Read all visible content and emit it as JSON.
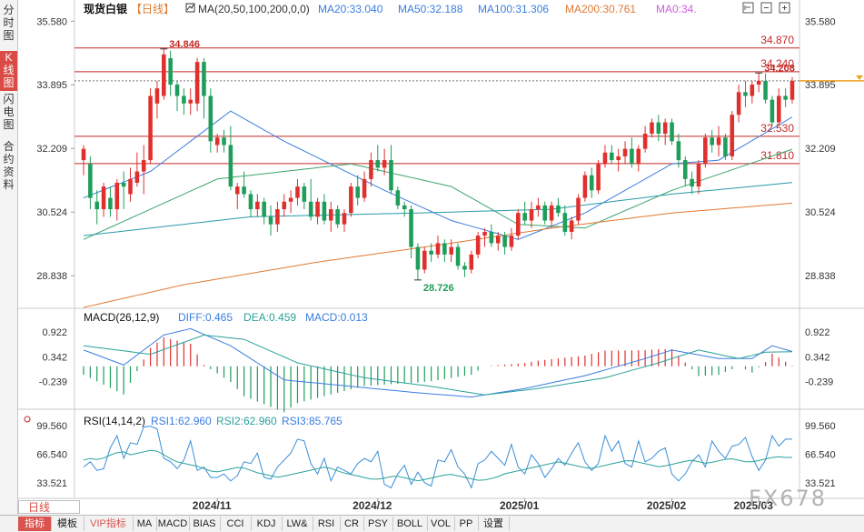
{
  "side_tabs": [
    {
      "label": "分时图",
      "active": false
    },
    {
      "label": "K线图",
      "active": true
    },
    {
      "label": "闪电图",
      "active": false
    },
    {
      "label": "合约资料",
      "active": false
    }
  ],
  "bottom_tabs": [
    {
      "label": "指标",
      "active": true
    },
    {
      "label": "模板"
    },
    {
      "label": "VIP指标",
      "vip": true
    },
    {
      "label": "MA"
    },
    {
      "label": "MACD"
    },
    {
      "label": "BIAS"
    },
    {
      "label": "CCI"
    },
    {
      "label": "KDJ"
    },
    {
      "label": "LW&"
    },
    {
      "label": "RSI"
    },
    {
      "label": "CR"
    },
    {
      "label": "PSY"
    },
    {
      "label": "BOLL"
    },
    {
      "label": "VOL"
    },
    {
      "label": "PP"
    },
    {
      "label": "设置"
    }
  ],
  "period_label": "日线",
  "watermark": "FX678",
  "main_panel": {
    "name": "现货白银",
    "period_tag": "【日线】",
    "indicator": "MA(20,50,100,200,0,0)",
    "ma_labels": [
      {
        "text": "MA20:33.040",
        "color": "#3a7de0"
      },
      {
        "text": "MA50:32.188",
        "color": "#3a7de0"
      },
      {
        "text": "MA100:31.306",
        "color": "#3a7de0"
      },
      {
        "text": "MA200:30.761",
        "color": "#e07a33"
      },
      {
        "text": "MA0:34.",
        "color": "#d05ee0"
      }
    ],
    "y_ticks": [
      "35.580",
      "33.895",
      "32.209",
      "30.524",
      "28.838"
    ],
    "y_ticks_right": [
      "35.580",
      "33.895",
      "32.209",
      "30.524",
      "28.838"
    ],
    "hlines": [
      {
        "label": "34.870",
        "value": 34.87
      },
      {
        "label": "34.240",
        "value": 34.24
      },
      {
        "label": "32.530",
        "value": 32.53
      },
      {
        "label": "31.810",
        "value": 31.81
      }
    ],
    "high_annotation": "34.846",
    "recent_high_annotation": "34.208",
    "low_annotation": "28.726"
  },
  "macd_panel": {
    "title": "MACD(26,12,9)",
    "diff_label": "DIFF:0.465",
    "dea_label": "DEA:0.459",
    "macd_label": "MACD:0.013",
    "y_ticks": [
      "0.922",
      "0.342",
      "-0.239"
    ],
    "y_ticks_right": [
      "0.922",
      "0.342",
      "-0.239"
    ]
  },
  "rsi_panel": {
    "title": "RSI(14,14,2)",
    "rsi1_label": "RSI1:62.960",
    "rsi2_label": "RSI2:62.960",
    "rsi3_label": "RSI3:85.765",
    "y_ticks": [
      "99.560",
      "66.540",
      "33.521"
    ],
    "y_ticks_right": [
      "99.560",
      "66.540",
      "33.521"
    ]
  },
  "x_labels": [
    "2024/11",
    "2024/12",
    "2025/01",
    "2025/02",
    "2025/03"
  ],
  "chart_data": {
    "type": "candlestick",
    "title": "现货白银【日线】",
    "ylim": [
      28.0,
      35.9
    ],
    "candles": [
      {
        "o": 31.9,
        "h": 32.3,
        "l": 31.5,
        "c": 32.2
      },
      {
        "o": 31.8,
        "h": 32.0,
        "l": 30.6,
        "c": 30.9
      },
      {
        "o": 30.8,
        "h": 31.1,
        "l": 30.2,
        "c": 30.6
      },
      {
        "o": 30.6,
        "h": 31.3,
        "l": 30.4,
        "c": 31.2
      },
      {
        "o": 30.9,
        "h": 31.2,
        "l": 30.4,
        "c": 30.6
      },
      {
        "o": 30.6,
        "h": 31.4,
        "l": 30.3,
        "c": 31.3
      },
      {
        "o": 31.3,
        "h": 31.6,
        "l": 30.6,
        "c": 31.2
      },
      {
        "o": 31.0,
        "h": 31.7,
        "l": 30.8,
        "c": 31.4
      },
      {
        "o": 31.3,
        "h": 32.1,
        "l": 31.2,
        "c": 31.6
      },
      {
        "o": 31.6,
        "h": 32.3,
        "l": 31.0,
        "c": 31.9
      },
      {
        "o": 31.9,
        "h": 33.8,
        "l": 31.8,
        "c": 33.6
      },
      {
        "o": 33.4,
        "h": 34.0,
        "l": 33.0,
        "c": 33.8
      },
      {
        "o": 33.6,
        "h": 34.846,
        "l": 33.5,
        "c": 34.7
      },
      {
        "o": 34.6,
        "h": 34.8,
        "l": 33.6,
        "c": 33.9
      },
      {
        "o": 33.9,
        "h": 34.0,
        "l": 33.2,
        "c": 33.6
      },
      {
        "o": 33.6,
        "h": 33.8,
        "l": 33.1,
        "c": 33.4
      },
      {
        "o": 33.4,
        "h": 33.8,
        "l": 33.1,
        "c": 33.5
      },
      {
        "o": 33.4,
        "h": 34.6,
        "l": 33.2,
        "c": 34.5
      },
      {
        "o": 34.5,
        "h": 34.6,
        "l": 33.0,
        "c": 33.6
      },
      {
        "o": 33.6,
        "h": 33.8,
        "l": 32.1,
        "c": 32.4
      },
      {
        "o": 32.3,
        "h": 32.6,
        "l": 32.1,
        "c": 32.5
      },
      {
        "o": 32.5,
        "h": 32.7,
        "l": 32.1,
        "c": 32.3
      },
      {
        "o": 32.3,
        "h": 32.8,
        "l": 31.1,
        "c": 31.2
      },
      {
        "o": 31.0,
        "h": 31.3,
        "l": 30.6,
        "c": 31.2
      },
      {
        "o": 31.2,
        "h": 31.6,
        "l": 30.9,
        "c": 31.0
      },
      {
        "o": 31.0,
        "h": 31.1,
        "l": 30.4,
        "c": 30.6
      },
      {
        "o": 30.6,
        "h": 31.0,
        "l": 30.4,
        "c": 30.8
      },
      {
        "o": 30.8,
        "h": 30.9,
        "l": 30.2,
        "c": 30.4
      },
      {
        "o": 30.4,
        "h": 30.7,
        "l": 29.9,
        "c": 30.2
      },
      {
        "o": 30.2,
        "h": 30.8,
        "l": 30.0,
        "c": 30.6
      },
      {
        "o": 30.6,
        "h": 31.0,
        "l": 30.4,
        "c": 30.8
      },
      {
        "o": 30.8,
        "h": 31.1,
        "l": 30.5,
        "c": 30.9
      },
      {
        "o": 30.9,
        "h": 31.4,
        "l": 30.7,
        "c": 31.2
      },
      {
        "o": 31.2,
        "h": 31.3,
        "l": 30.6,
        "c": 30.8
      },
      {
        "o": 30.8,
        "h": 31.4,
        "l": 30.3,
        "c": 30.4
      },
      {
        "o": 30.4,
        "h": 30.9,
        "l": 30.2,
        "c": 30.8
      },
      {
        "o": 30.8,
        "h": 31.0,
        "l": 30.2,
        "c": 30.3
      },
      {
        "o": 30.3,
        "h": 30.8,
        "l": 30.0,
        "c": 30.6
      },
      {
        "o": 30.6,
        "h": 30.7,
        "l": 30.1,
        "c": 30.2
      },
      {
        "o": 30.2,
        "h": 30.6,
        "l": 30.0,
        "c": 30.5
      },
      {
        "o": 30.5,
        "h": 31.3,
        "l": 30.4,
        "c": 31.2
      },
      {
        "o": 31.2,
        "h": 31.5,
        "l": 30.7,
        "c": 30.9
      },
      {
        "o": 30.9,
        "h": 31.6,
        "l": 30.8,
        "c": 31.4
      },
      {
        "o": 31.4,
        "h": 32.1,
        "l": 31.2,
        "c": 31.9
      },
      {
        "o": 31.9,
        "h": 32.3,
        "l": 31.6,
        "c": 31.7
      },
      {
        "o": 31.7,
        "h": 32.2,
        "l": 31.5,
        "c": 31.9
      },
      {
        "o": 31.9,
        "h": 32.3,
        "l": 31.0,
        "c": 31.1
      },
      {
        "o": 31.1,
        "h": 31.2,
        "l": 30.6,
        "c": 30.7
      },
      {
        "o": 30.7,
        "h": 30.8,
        "l": 30.4,
        "c": 30.6
      },
      {
        "o": 30.6,
        "h": 30.7,
        "l": 29.3,
        "c": 29.6
      },
      {
        "o": 29.6,
        "h": 29.7,
        "l": 28.726,
        "c": 29.0
      },
      {
        "o": 29.0,
        "h": 29.6,
        "l": 28.9,
        "c": 29.5
      },
      {
        "o": 29.5,
        "h": 29.7,
        "l": 29.2,
        "c": 29.4
      },
      {
        "o": 29.4,
        "h": 29.9,
        "l": 29.3,
        "c": 29.7
      },
      {
        "o": 29.7,
        "h": 29.8,
        "l": 29.2,
        "c": 29.4
      },
      {
        "o": 29.4,
        "h": 29.8,
        "l": 29.2,
        "c": 29.6
      },
      {
        "o": 29.6,
        "h": 29.7,
        "l": 29.0,
        "c": 29.1
      },
      {
        "o": 29.1,
        "h": 29.2,
        "l": 28.8,
        "c": 29.0
      },
      {
        "o": 29.0,
        "h": 29.5,
        "l": 28.9,
        "c": 29.4
      },
      {
        "o": 29.4,
        "h": 30.0,
        "l": 29.3,
        "c": 29.9
      },
      {
        "o": 29.9,
        "h": 30.1,
        "l": 29.6,
        "c": 30.0
      },
      {
        "o": 30.0,
        "h": 30.2,
        "l": 29.6,
        "c": 29.7
      },
      {
        "o": 29.7,
        "h": 30.0,
        "l": 29.5,
        "c": 29.9
      },
      {
        "o": 29.9,
        "h": 30.0,
        "l": 29.4,
        "c": 29.6
      },
      {
        "o": 29.6,
        "h": 30.1,
        "l": 29.5,
        "c": 29.9
      },
      {
        "o": 29.9,
        "h": 30.6,
        "l": 29.8,
        "c": 30.5
      },
      {
        "o": 30.5,
        "h": 30.8,
        "l": 30.2,
        "c": 30.3
      },
      {
        "o": 30.3,
        "h": 30.8,
        "l": 30.1,
        "c": 30.6
      },
      {
        "o": 30.6,
        "h": 30.9,
        "l": 30.4,
        "c": 30.7
      },
      {
        "o": 30.7,
        "h": 30.8,
        "l": 30.2,
        "c": 30.3
      },
      {
        "o": 30.3,
        "h": 30.8,
        "l": 30.1,
        "c": 30.7
      },
      {
        "o": 30.7,
        "h": 30.9,
        "l": 30.4,
        "c": 30.5
      },
      {
        "o": 30.5,
        "h": 30.7,
        "l": 29.9,
        "c": 30.0
      },
      {
        "o": 30.0,
        "h": 30.4,
        "l": 29.8,
        "c": 30.3
      },
      {
        "o": 30.3,
        "h": 31.0,
        "l": 30.2,
        "c": 30.9
      },
      {
        "o": 30.9,
        "h": 31.6,
        "l": 30.8,
        "c": 31.5
      },
      {
        "o": 31.5,
        "h": 31.7,
        "l": 30.9,
        "c": 31.1
      },
      {
        "o": 31.1,
        "h": 31.9,
        "l": 31.0,
        "c": 31.8
      },
      {
        "o": 31.8,
        "h": 32.3,
        "l": 31.7,
        "c": 32.1
      },
      {
        "o": 32.1,
        "h": 32.3,
        "l": 31.8,
        "c": 31.9
      },
      {
        "o": 31.9,
        "h": 32.2,
        "l": 31.6,
        "c": 32.0
      },
      {
        "o": 32.0,
        "h": 32.4,
        "l": 31.8,
        "c": 32.2
      },
      {
        "o": 32.2,
        "h": 32.5,
        "l": 31.7,
        "c": 31.8
      },
      {
        "o": 31.8,
        "h": 32.3,
        "l": 31.6,
        "c": 32.2
      },
      {
        "o": 32.2,
        "h": 32.8,
        "l": 32.1,
        "c": 32.6
      },
      {
        "o": 32.6,
        "h": 33.0,
        "l": 32.5,
        "c": 32.9
      },
      {
        "o": 32.9,
        "h": 33.1,
        "l": 32.4,
        "c": 32.6
      },
      {
        "o": 32.6,
        "h": 33.0,
        "l": 32.3,
        "c": 32.9
      },
      {
        "o": 32.9,
        "h": 33.0,
        "l": 32.3,
        "c": 32.4
      },
      {
        "o": 32.4,
        "h": 32.6,
        "l": 31.7,
        "c": 31.9
      },
      {
        "o": 31.9,
        "h": 32.0,
        "l": 31.2,
        "c": 31.4
      },
      {
        "o": 31.4,
        "h": 31.6,
        "l": 31.0,
        "c": 31.2
      },
      {
        "o": 31.2,
        "h": 31.9,
        "l": 31.0,
        "c": 31.8
      },
      {
        "o": 31.8,
        "h": 32.6,
        "l": 31.7,
        "c": 32.5
      },
      {
        "o": 32.5,
        "h": 32.7,
        "l": 32.1,
        "c": 32.3
      },
      {
        "o": 32.3,
        "h": 32.8,
        "l": 32.0,
        "c": 32.5
      },
      {
        "o": 32.5,
        "h": 32.6,
        "l": 31.9,
        "c": 32.0
      },
      {
        "o": 32.0,
        "h": 33.2,
        "l": 31.9,
        "c": 33.1
      },
      {
        "o": 33.1,
        "h": 33.9,
        "l": 32.9,
        "c": 33.7
      },
      {
        "o": 33.7,
        "h": 34.0,
        "l": 33.3,
        "c": 33.6
      },
      {
        "o": 33.6,
        "h": 34.0,
        "l": 33.4,
        "c": 33.9
      },
      {
        "o": 33.9,
        "h": 34.208,
        "l": 33.7,
        "c": 34.0
      },
      {
        "o": 34.0,
        "h": 34.2,
        "l": 33.4,
        "c": 33.5
      },
      {
        "o": 33.5,
        "h": 33.6,
        "l": 32.8,
        "c": 32.9
      },
      {
        "o": 32.9,
        "h": 33.8,
        "l": 32.8,
        "c": 33.6
      },
      {
        "o": 33.6,
        "h": 33.8,
        "l": 33.3,
        "c": 33.5
      },
      {
        "o": 33.5,
        "h": 34.1,
        "l": 33.4,
        "c": 34.0
      }
    ],
    "ma_series": [
      {
        "name": "MA20",
        "color": "#3a7de0",
        "anchors": [
          [
            0,
            30.9
          ],
          [
            10,
            31.6
          ],
          [
            22,
            33.2
          ],
          [
            30,
            32.4
          ],
          [
            45,
            31.1
          ],
          [
            55,
            30.3
          ],
          [
            65,
            29.8
          ],
          [
            75,
            30.5
          ],
          [
            88,
            31.8
          ],
          [
            95,
            31.9
          ],
          [
            106,
            33.04
          ]
        ]
      },
      {
        "name": "MA50",
        "color": "#3aa56b",
        "anchors": [
          [
            0,
            29.8
          ],
          [
            20,
            31.4
          ],
          [
            40,
            31.8
          ],
          [
            55,
            31.2
          ],
          [
            65,
            30.2
          ],
          [
            75,
            30.1
          ],
          [
            88,
            31.1
          ],
          [
            106,
            32.188
          ]
        ]
      },
      {
        "name": "MA100",
        "color": "#2a9aa8",
        "anchors": [
          [
            0,
            29.9
          ],
          [
            25,
            30.4
          ],
          [
            50,
            30.5
          ],
          [
            70,
            30.6
          ],
          [
            88,
            31.0
          ],
          [
            106,
            31.306
          ]
        ]
      },
      {
        "name": "MA200",
        "color": "#e07a33",
        "anchors": [
          [
            0,
            28.0
          ],
          [
            15,
            28.6
          ],
          [
            35,
            29.2
          ],
          [
            55,
            29.7
          ],
          [
            70,
            30.1
          ],
          [
            88,
            30.5
          ],
          [
            106,
            30.761
          ]
        ]
      }
    ],
    "macd": {
      "ylim": [
        -0.8,
        1.2
      ],
      "diff_anchors": [
        [
          0,
          0.5
        ],
        [
          6,
          0.15
        ],
        [
          12,
          0.85
        ],
        [
          16,
          1.0
        ],
        [
          22,
          0.6
        ],
        [
          30,
          -0.2
        ],
        [
          40,
          -0.35
        ],
        [
          50,
          -0.5
        ],
        [
          58,
          -0.6
        ],
        [
          66,
          -0.4
        ],
        [
          75,
          -0.1
        ],
        [
          84,
          0.3
        ],
        [
          88,
          0.5
        ],
        [
          95,
          0.3
        ],
        [
          100,
          0.3
        ],
        [
          103,
          0.6
        ],
        [
          106,
          0.465
        ]
      ],
      "dea_anchors": [
        [
          0,
          0.6
        ],
        [
          10,
          0.4
        ],
        [
          18,
          0.85
        ],
        [
          24,
          0.75
        ],
        [
          32,
          0.2
        ],
        [
          42,
          -0.15
        ],
        [
          52,
          -0.35
        ],
        [
          60,
          -0.55
        ],
        [
          68,
          -0.4
        ],
        [
          78,
          -0.15
        ],
        [
          86,
          0.2
        ],
        [
          92,
          0.5
        ],
        [
          98,
          0.3
        ],
        [
          102,
          0.45
        ],
        [
          106,
          0.459
        ]
      ]
    },
    "rsi": {
      "ylim": [
        18,
        108
      ],
      "rsi_fast": [
        52,
        58,
        48,
        50,
        74,
        88,
        62,
        80,
        78,
        98,
        99,
        96,
        62,
        58,
        50,
        60,
        82,
        48,
        52,
        40,
        40,
        44,
        36,
        42,
        58,
        56,
        68,
        40,
        38,
        52,
        60,
        68,
        84,
        82,
        56,
        44,
        62,
        36,
        52,
        48,
        44,
        56,
        62,
        58,
        70,
        32,
        28,
        44,
        54,
        32,
        46,
        34,
        30,
        60,
        58,
        72,
        52,
        44,
        28,
        56,
        60,
        70,
        62,
        54,
        78,
        52,
        44,
        66,
        56,
        40,
        50,
        62,
        54,
        68,
        80,
        58,
        48,
        56,
        88,
        70,
        82,
        56,
        52,
        82,
        58,
        62,
        70,
        74,
        44,
        36,
        44,
        58,
        66,
        52,
        82,
        70,
        62,
        76,
        78,
        86,
        64,
        48,
        60,
        88,
        76,
        84
      ],
      "rsi_slow": [
        60,
        62,
        60,
        64,
        68,
        70,
        66,
        68,
        70,
        72,
        68,
        62,
        58,
        56,
        54,
        52,
        48,
        46,
        48,
        50,
        52,
        50,
        46,
        44,
        42,
        40,
        42,
        44,
        46,
        48,
        50,
        52,
        50,
        46,
        44,
        42,
        40,
        38,
        38,
        40,
        42,
        40,
        38,
        36,
        38,
        40,
        42,
        44,
        42,
        40,
        38,
        36,
        38,
        40,
        44,
        46,
        48,
        50,
        52,
        54,
        56,
        58,
        56,
        54,
        52,
        50,
        52,
        54,
        56,
        58,
        60,
        58,
        56,
        54,
        52,
        54,
        56,
        58,
        60,
        58,
        56,
        58,
        60,
        62,
        60,
        58,
        58,
        60,
        62,
        64,
        63,
        62.96
      ]
    }
  }
}
